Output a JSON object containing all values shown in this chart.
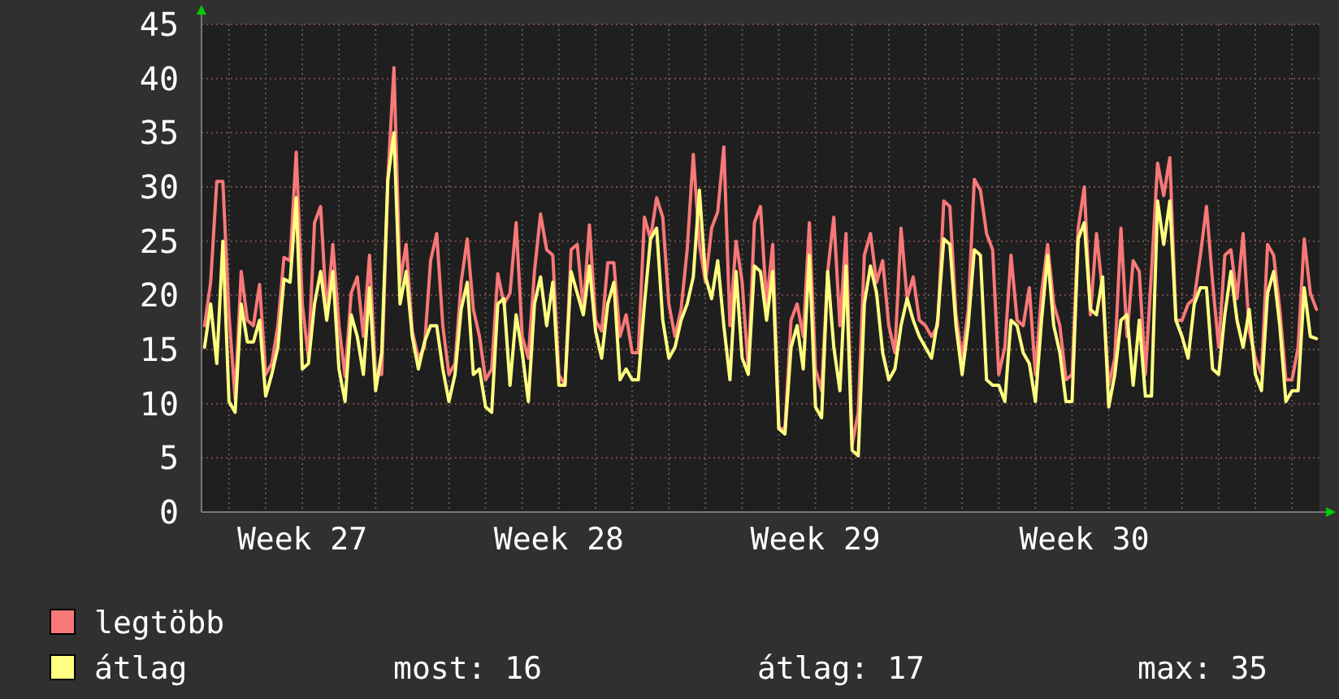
{
  "chart_data": {
    "type": "line",
    "ylim": [
      0,
      45
    ],
    "yticks": [
      0,
      5,
      10,
      15,
      20,
      25,
      30,
      35,
      40,
      45
    ],
    "categories": [
      null,
      null,
      null,
      null,
      null,
      null,
      null,
      null,
      null,
      null,
      null,
      null,
      null,
      null,
      null,
      null,
      "Week 27",
      null,
      null,
      null,
      null,
      null,
      null,
      null,
      null,
      null,
      null,
      null,
      null,
      null,
      null,
      null,
      null,
      null,
      null,
      null,
      null,
      null,
      null,
      null,
      null,
      null,
      null,
      null,
      null,
      null,
      null,
      null,
      null,
      null,
      null,
      null,
      null,
      null,
      null,
      null,
      null,
      null,
      "Week 28",
      null,
      null,
      null,
      null,
      null,
      null,
      null,
      null,
      null,
      null,
      null,
      null,
      null,
      null,
      null,
      null,
      null,
      null,
      null,
      null,
      null,
      null,
      null,
      null,
      null,
      null,
      null,
      null,
      null,
      null,
      null,
      null,
      null,
      null,
      null,
      null,
      null,
      null,
      null,
      null,
      null,
      "Week 29",
      null,
      null,
      null,
      null,
      null,
      null,
      null,
      null,
      null,
      null,
      null,
      null,
      null,
      null,
      null,
      null,
      null,
      null,
      null,
      null,
      null,
      null,
      null,
      null,
      null,
      null,
      null,
      null,
      null,
      null,
      null,
      null,
      null,
      null,
      null,
      null,
      null,
      null,
      null,
      null,
      null,
      null,
      null,
      "Week 30",
      null,
      null,
      null,
      null,
      null,
      null,
      null,
      null,
      null,
      null,
      null,
      null,
      null,
      null,
      null,
      null,
      null,
      null,
      null,
      null,
      null,
      null,
      null,
      null,
      null,
      null,
      null,
      null,
      null,
      null,
      null,
      null,
      null,
      null,
      null,
      null,
      null,
      null
    ],
    "grid": true,
    "legend": "bottom left",
    "marker": "none",
    "line_style": "solid",
    "annotations": [
      "most: 16",
      "átlag: 17",
      "max: 35"
    ],
    "series": [
      {
        "name": "legtöbb",
        "color": "#f87878",
        "values": [
          17.2,
          21.2,
          30.5,
          30.5,
          18.2,
          10.5,
          22.2,
          17.7,
          17.2,
          21,
          12.7,
          13.7,
          17.2,
          23.5,
          23.2,
          33.2,
          19.2,
          14.2,
          26.7,
          28.2,
          18.2,
          24.7,
          17.2,
          12.5,
          20.2,
          21.7,
          16.2,
          23.7,
          12.7,
          12.7,
          30.7,
          41,
          21.2,
          24.7,
          16.7,
          14.2,
          15.2,
          23.2,
          25.7,
          17.2,
          12.7,
          13.7,
          21.2,
          25.2,
          18.7,
          16.2,
          12.2,
          13.2,
          22,
          19.2,
          20.2,
          26.7,
          16.2,
          14.2,
          22.2,
          27.5,
          24.2,
          23.7,
          12.7,
          11.7,
          24.2,
          24.7,
          18.7,
          26.5,
          17.7,
          16.7,
          23,
          23,
          16.2,
          18.2,
          14.7,
          14.7,
          27.2,
          25.2,
          29,
          27.2,
          19.2,
          16.2,
          18.7,
          24.2,
          33,
          24.7,
          21.2,
          26.2,
          27.7,
          33.7,
          17.2,
          25,
          21.2,
          13.2,
          26.7,
          28.2,
          19.2,
          24.7,
          7.7,
          7.7,
          17.7,
          19.2,
          16.2,
          26.7,
          13.2,
          11.2,
          22.2,
          27.2,
          17.2,
          25.7,
          6.2,
          9.2,
          23.7,
          25.7,
          21.2,
          23.2,
          17.2,
          14.7,
          26.2,
          19.7,
          21.7,
          17.7,
          17.2,
          16.2,
          17.2,
          28.7,
          28.2,
          18.2,
          14.2,
          18.7,
          30.7,
          29.7,
          25.7,
          24.2,
          12.7,
          15.2,
          23.7,
          17.7,
          17.2,
          20.7,
          12.7,
          20.2,
          24.7,
          19.2,
          17.2,
          12.2,
          12.7,
          26.2,
          30,
          18.2,
          25.7,
          20.2,
          11.7,
          14.2,
          26.2,
          16.2,
          23.2,
          22.2,
          12.7,
          22.2,
          32.2,
          29.2,
          32.7,
          17.7,
          17.7,
          19.2,
          19.7,
          23.7,
          28.2,
          21.2,
          15.2,
          23.7,
          24.2,
          19.7,
          25.7,
          16.7,
          14.2,
          12.7,
          24.7,
          23.7,
          18.7,
          12.2,
          12.2,
          15.2,
          25.2,
          20.2,
          18.7
        ]
      },
      {
        "name": "átlag",
        "color": "#ffff80",
        "values": [
          15.2,
          19.2,
          13.7,
          25,
          10.2,
          9.2,
          19.2,
          15.7,
          15.7,
          17.7,
          10.7,
          12.7,
          15.2,
          21.5,
          21.2,
          29,
          13.2,
          13.7,
          19.2,
          22.2,
          17.7,
          22.2,
          13.2,
          10.2,
          18.2,
          16.2,
          12.7,
          20.7,
          11.2,
          14.7,
          30.7,
          35,
          19.2,
          22.2,
          16.2,
          13.2,
          15.7,
          17.2,
          17.2,
          13.2,
          10.2,
          12.7,
          18.7,
          21.2,
          12.7,
          13.2,
          9.7,
          9.2,
          19.2,
          19.7,
          11.7,
          18.2,
          14.7,
          10.2,
          19.2,
          21.7,
          17.2,
          21.2,
          11.7,
          11.7,
          22.2,
          20.2,
          18.2,
          22.7,
          16.7,
          14.2,
          19.2,
          21.2,
          12.2,
          13.2,
          12.2,
          12.2,
          19.2,
          25.2,
          26.2,
          17.7,
          14.2,
          15.2,
          17.7,
          19.2,
          21.7,
          29.7,
          21.7,
          19.7,
          23.2,
          17.2,
          12.2,
          22.2,
          14.2,
          12.7,
          22.7,
          22.2,
          17.7,
          22.2,
          7.7,
          7.2,
          15.2,
          17.2,
          13.2,
          23.7,
          9.7,
          8.7,
          22.2,
          15.2,
          11.2,
          22.7,
          5.7,
          5.2,
          19.2,
          22.7,
          20.2,
          14.7,
          12.2,
          13.2,
          17.2,
          19.7,
          17.7,
          16.2,
          15.2,
          14.2,
          17.7,
          25.2,
          24.7,
          17.2,
          12.7,
          17.2,
          24.2,
          23.7,
          12.2,
          11.7,
          11.7,
          10.2,
          17.7,
          17.2,
          14.7,
          13.7,
          10.2,
          17.7,
          23.7,
          17.2,
          14.7,
          10.2,
          10.2,
          25.2,
          26.7,
          18.7,
          18.2,
          21.7,
          9.7,
          12.7,
          17.7,
          18.2,
          11.7,
          17.7,
          10.7,
          10.7,
          28.7,
          24.7,
          28.7,
          17.7,
          16.2,
          14.2,
          19.2,
          20.7,
          20.7,
          13.2,
          12.7,
          18.2,
          22.2,
          17.7,
          15.2,
          18.7,
          12.7,
          11.2,
          20.2,
          22.2,
          17.2,
          10.2,
          11.2,
          11.2,
          20.7,
          16.2,
          16
        ]
      }
    ]
  }
}
